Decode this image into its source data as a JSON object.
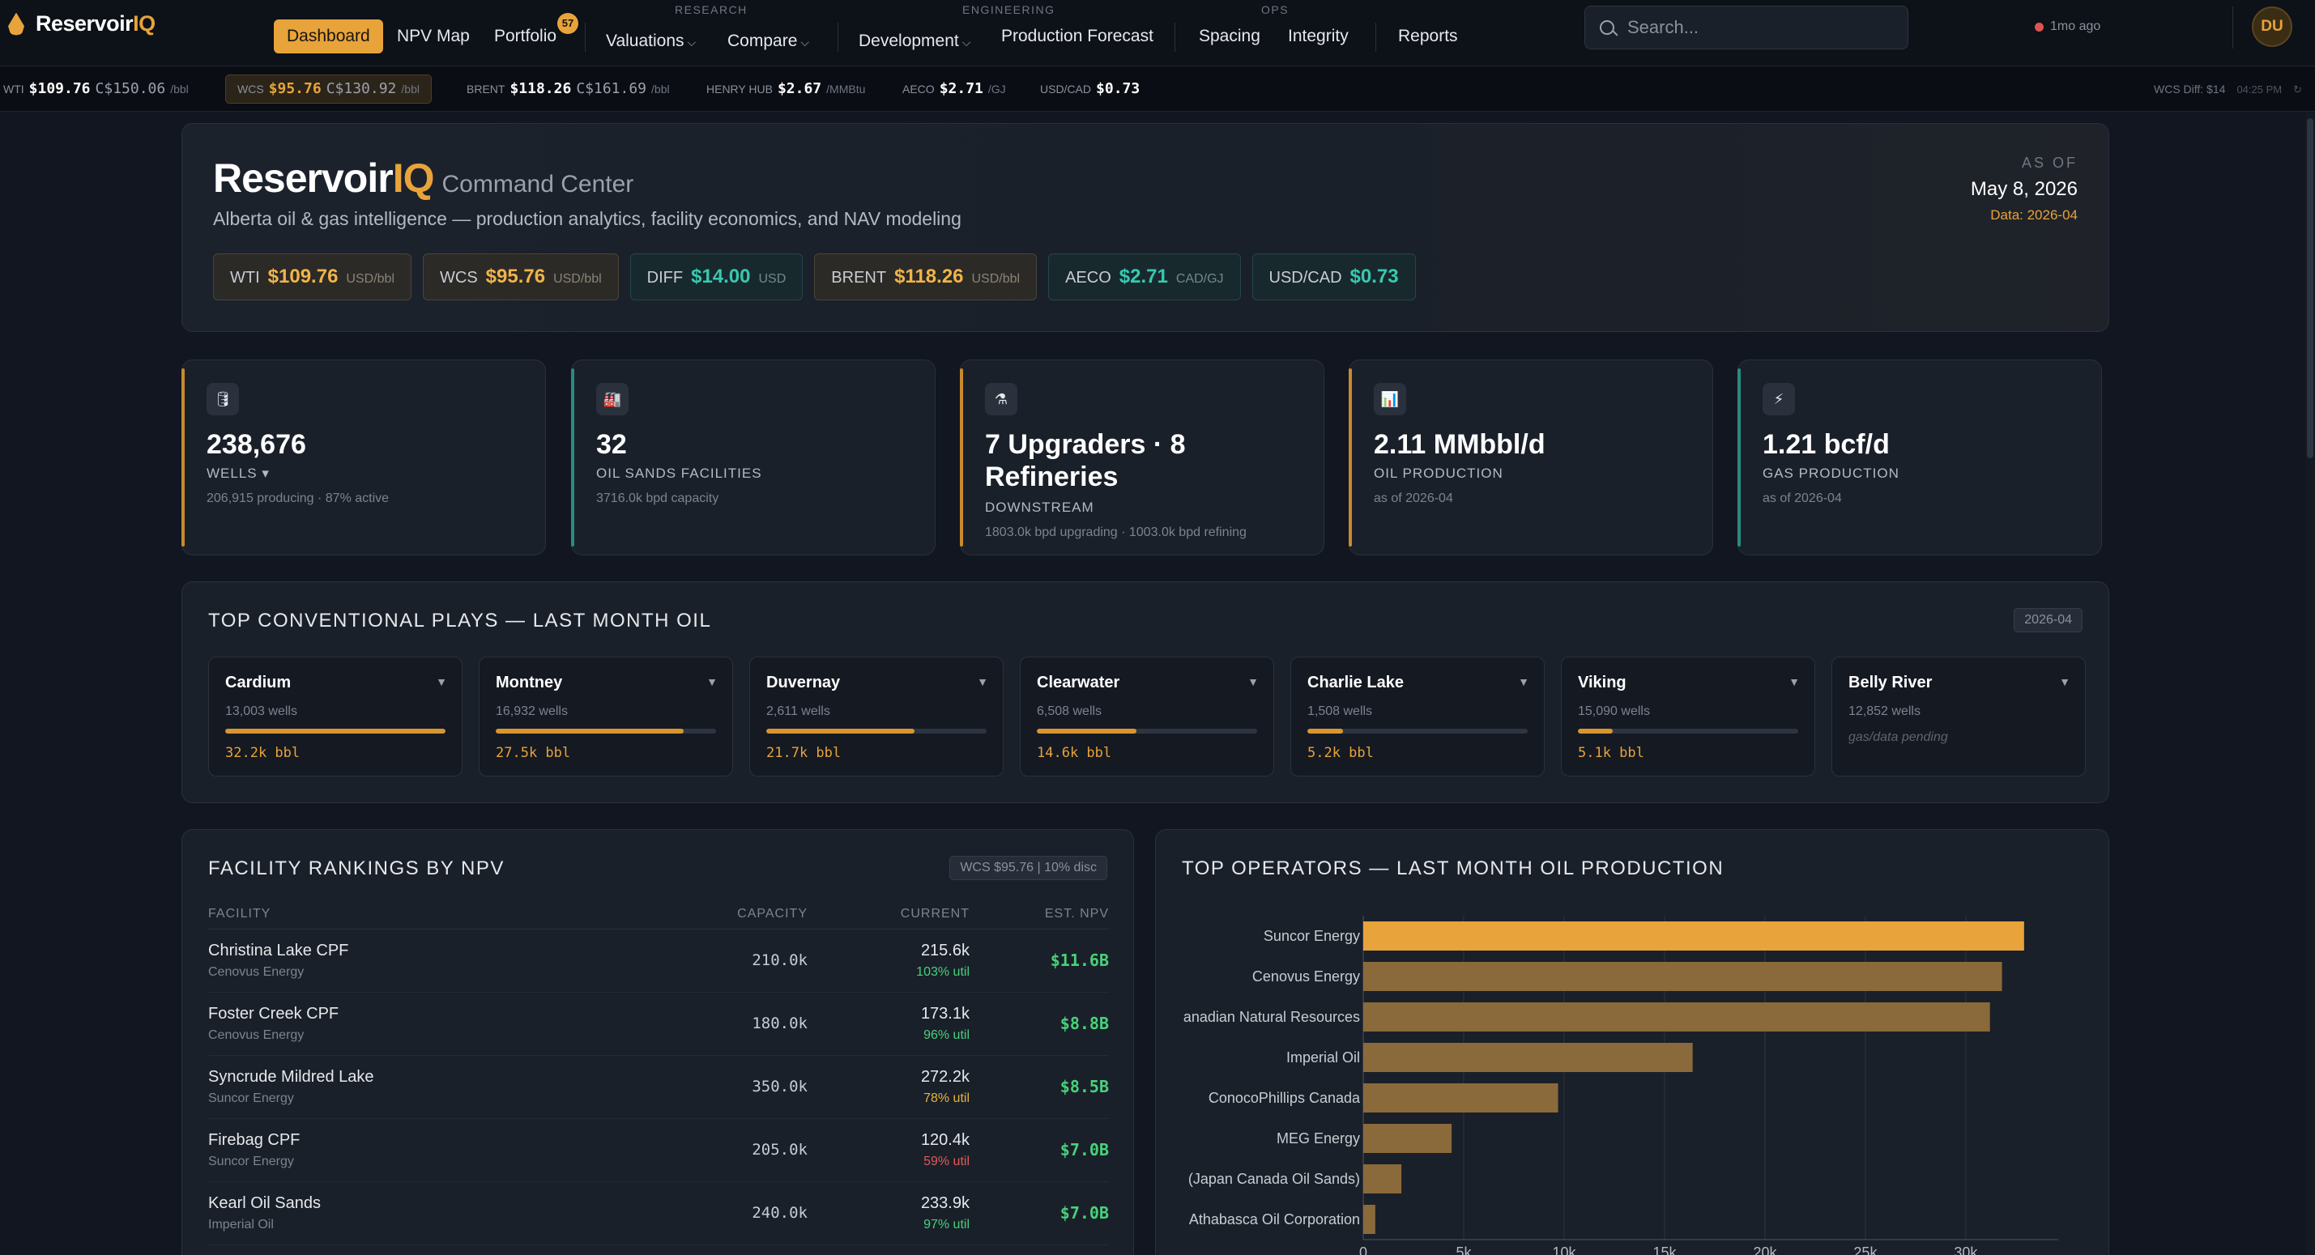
{
  "app": {
    "name_main": "Reservoir",
    "name_accent": "IQ"
  },
  "nav": {
    "groups": {
      "research": "RESEARCH",
      "engineering": "ENGINEERING",
      "ops": "OPS"
    },
    "items": {
      "dashboard": "Dashboard",
      "npv_map": "NPV Map",
      "portfolio": "Portfolio",
      "portfolio_badge": "57",
      "valuations": "Valuations",
      "compare": "Compare",
      "development": "Development",
      "production_forecast": "Production Forecast",
      "spacing": "Spacing",
      "integrity": "Integrity",
      "reports": "Reports"
    },
    "search_placeholder": "Search...",
    "freshness": "1mo ago",
    "avatar": "DU"
  },
  "ticker": {
    "wti": {
      "label": "WTI",
      "usd": "$109.76",
      "cad": "C$150.06",
      "unit": "/bbl"
    },
    "wcs": {
      "label": "WCS",
      "usd": "$95.76",
      "cad": "C$130.92",
      "unit": "/bbl"
    },
    "brent": {
      "label": "BRENT",
      "usd": "$118.26",
      "cad": "C$161.69",
      "unit": "/bbl"
    },
    "henry_hub": {
      "label": "HENRY HUB",
      "usd": "$2.67",
      "unit": "/MMBtu"
    },
    "aeco": {
      "label": "AECO",
      "usd": "$2.71",
      "unit": "/GJ"
    },
    "usdcad": {
      "label": "USD/CAD",
      "usd": "$0.73"
    },
    "diff": "WCS Diff: $14",
    "time": "04:25 PM"
  },
  "hero": {
    "title_main": "Reservoir",
    "title_accent": "IQ",
    "subtitle": "Command Center",
    "description": "Alberta oil & gas intelligence — production analytics, facility economics, and NAV modeling",
    "asof_label": "AS OF",
    "asof_date": "May 8, 2026",
    "data_period": "Data: 2026-04",
    "prices": [
      {
        "label": "WTI",
        "value": "$109.76",
        "unit": "USD/bbl",
        "tone": "amber"
      },
      {
        "label": "WCS",
        "value": "$95.76",
        "unit": "USD/bbl",
        "tone": "amber"
      },
      {
        "label": "DIFF",
        "value": "$14.00",
        "unit": "USD",
        "tone": "teal"
      },
      {
        "label": "BRENT",
        "value": "$118.26",
        "unit": "USD/bbl",
        "tone": "amber"
      },
      {
        "label": "AECO",
        "value": "$2.71",
        "unit": "CAD/GJ",
        "tone": "teal"
      },
      {
        "label": "USD/CAD",
        "value": "$0.73",
        "unit": "",
        "tone": "teal"
      }
    ]
  },
  "kpis": [
    {
      "icon": "oil-barrel-icon",
      "glyph": "🛢",
      "value": "238,676",
      "label": "WELLS ▾",
      "detail": "206,915 producing · 87% active",
      "accent": "#c98a2e"
    },
    {
      "icon": "factory-icon",
      "glyph": "🏭",
      "value": "32",
      "label": "OIL SANDS FACILITIES",
      "detail": "3716.0k bpd capacity",
      "accent": "#2a8a80"
    },
    {
      "icon": "flask-icon",
      "glyph": "⚗",
      "value": "7 Upgraders · 8 Refineries",
      "label": "DOWNSTREAM",
      "detail": "1803.0k bpd upgrading · 1003.0k bpd refining",
      "accent": "#c98a2e"
    },
    {
      "icon": "bar-chart-icon",
      "glyph": "📊",
      "value": "2.11 MMbbl/d",
      "label": "OIL PRODUCTION",
      "detail": "as of 2026-04",
      "accent": "#c98a2e"
    },
    {
      "icon": "lightning-icon",
      "glyph": "⚡",
      "value": "1.21 bcf/d",
      "label": "GAS PRODUCTION",
      "detail": "as of 2026-04",
      "accent": "#2a8a80"
    }
  ],
  "plays": {
    "title": "TOP CONVENTIONAL PLAYS — LAST MONTH OIL",
    "period": "2026-04",
    "items": [
      {
        "name": "Cardium",
        "wells": "13,003 wells",
        "volume": "32.2k bbl",
        "fill": 1.0
      },
      {
        "name": "Montney",
        "wells": "16,932 wells",
        "volume": "27.5k bbl",
        "fill": 0.854
      },
      {
        "name": "Duvernay",
        "wells": "2,611 wells",
        "volume": "21.7k bbl",
        "fill": 0.674
      },
      {
        "name": "Clearwater",
        "wells": "6,508 wells",
        "volume": "14.6k bbl",
        "fill": 0.453
      },
      {
        "name": "Charlie Lake",
        "wells": "1,508 wells",
        "volume": "5.2k bbl",
        "fill": 0.161
      },
      {
        "name": "Viking",
        "wells": "15,090 wells",
        "volume": "5.1k bbl",
        "fill": 0.158
      },
      {
        "name": "Belly River",
        "wells": "12,852 wells",
        "volume": "",
        "pending": "gas/data pending",
        "fill": 0
      }
    ]
  },
  "rankings": {
    "title": "FACILITY RANKINGS BY NPV",
    "badge": "WCS $95.76 | 10% disc",
    "headers": {
      "facility": "FACILITY",
      "capacity": "CAPACITY",
      "current": "CURRENT",
      "npv": "EST. NPV"
    },
    "rows": [
      {
        "facility": "Christina Lake CPF",
        "operator": "Cenovus Energy",
        "capacity": "210.0k",
        "current": "215.6k",
        "util": "103% util",
        "util_color": "#48d17c",
        "npv": "$11.6B"
      },
      {
        "facility": "Foster Creek CPF",
        "operator": "Cenovus Energy",
        "capacity": "180.0k",
        "current": "173.1k",
        "util": "96% util",
        "util_color": "#48d17c",
        "npv": "$8.8B"
      },
      {
        "facility": "Syncrude Mildred Lake",
        "operator": "Suncor Energy",
        "capacity": "350.0k",
        "current": "272.2k",
        "util": "78% util",
        "util_color": "#e8b33a",
        "npv": "$8.5B"
      },
      {
        "facility": "Firebag CPF",
        "operator": "Suncor Energy",
        "capacity": "205.0k",
        "current": "120.4k",
        "util": "59% util",
        "util_color": "#e05a5a",
        "npv": "$7.0B"
      },
      {
        "facility": "Kearl Oil Sands",
        "operator": "Imperial Oil",
        "capacity": "240.0k",
        "current": "233.9k",
        "util": "97% util",
        "util_color": "#48d17c",
        "npv": "$7.0B"
      }
    ]
  },
  "operators": {
    "title": "TOP OPERATORS — LAST MONTH OIL PRODUCTION",
    "chart_data": {
      "type": "bar",
      "orientation": "horizontal",
      "categories": [
        "Suncor Energy",
        "Cenovus Energy",
        "anadian Natural Resources",
        "Imperial Oil",
        "ConocoPhillips Canada",
        "MEG Energy",
        "(Japan Canada Oil Sands)",
        "Athabasca Oil Corporation"
      ],
      "values": [
        32900,
        31800,
        31200,
        16400,
        9700,
        4400,
        1900,
        600
      ],
      "xlim": [
        0,
        34600
      ],
      "xticks": [
        0,
        5000,
        10000,
        15000,
        20000,
        25000,
        30000
      ],
      "xtick_labels": [
        "0",
        "5k",
        "10k",
        "15k",
        "20k",
        "25k",
        "30k"
      ],
      "highlight_color": "#e8a33a",
      "bar_color": "#8a6a3a",
      "grid": true
    }
  }
}
